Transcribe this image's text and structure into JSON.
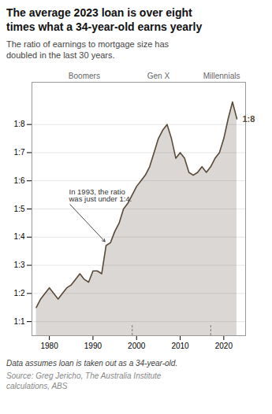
{
  "chart_data": {
    "type": "area",
    "title": "The average 2023 loan is over eight\ntimes what a 34-year-old earns yearly",
    "subtitle": "The ratio of earnings to mortgage size has\ndoubled in the last 30 years.",
    "footnotes": [
      "Data assumes loan is taken out as a 34-year-old.",
      "Source: Greg Jericho, The Australia Institute\ncalculations, ABS"
    ],
    "x": [
      1977,
      1978,
      1979,
      1980,
      1981,
      1982,
      1983,
      1984,
      1985,
      1986,
      1987,
      1988,
      1989,
      1990,
      1991,
      1992,
      1993,
      1994,
      1995,
      1996,
      1997,
      1998,
      1999,
      2000,
      2001,
      2002,
      2003,
      2004,
      2005,
      2006,
      2007,
      2008,
      2009,
      2010,
      2011,
      2012,
      2013,
      2014,
      2015,
      2016,
      2017,
      2018,
      2019,
      2020,
      2021,
      2022,
      2023
    ],
    "values": [
      1.15,
      1.18,
      1.2,
      1.22,
      1.2,
      1.18,
      1.2,
      1.22,
      1.23,
      1.25,
      1.27,
      1.25,
      1.24,
      1.28,
      1.28,
      1.27,
      1.37,
      1.38,
      1.42,
      1.45,
      1.5,
      1.52,
      1.55,
      1.58,
      1.6,
      1.62,
      1.65,
      1.7,
      1.75,
      1.78,
      1.8,
      1.75,
      1.68,
      1.7,
      1.68,
      1.63,
      1.62,
      1.63,
      1.65,
      1.63,
      1.65,
      1.68,
      1.7,
      1.75,
      1.82,
      1.88,
      1.82
    ],
    "baseline": 1.0,
    "color": "#5a4a3a",
    "xlim": [
      1976,
      2025
    ],
    "ylim": [
      1.05,
      1.95
    ],
    "xticks": [
      1980,
      1990,
      2000,
      2010,
      2020
    ],
    "yticks": [
      {
        "value": 1.1,
        "label": "1:1"
      },
      {
        "value": 1.2,
        "label": "1:2"
      },
      {
        "value": 1.3,
        "label": "1:3"
      },
      {
        "value": 1.4,
        "label": "1:4"
      },
      {
        "value": 1.5,
        "label": "1:5"
      },
      {
        "value": 1.6,
        "label": "1:6"
      },
      {
        "value": 1.7,
        "label": "1:7"
      },
      {
        "value": 1.8,
        "label": "1:8"
      }
    ],
    "grid": true,
    "end_label": {
      "text": "1:8",
      "x": 2023,
      "y": 1.82
    },
    "annotations": [
      {
        "text": "In 1993, the ratio\nwas just under 1:4.",
        "x": 1993,
        "y": 1.38,
        "text_x": 1984.5,
        "text_y": 1.52
      }
    ],
    "generations": [
      {
        "label": "Boomers",
        "x": 1988
      },
      {
        "label": "Gen X",
        "x": 2005
      },
      {
        "label": "Millennials",
        "x": 2019.5
      }
    ],
    "gen_dividers": [
      1999,
      2017
    ]
  }
}
